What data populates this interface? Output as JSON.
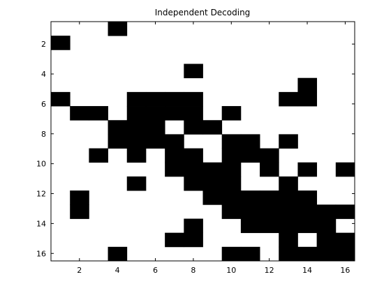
{
  "chart_data": {
    "type": "heatmap",
    "title": "Independent Decoding",
    "xlabel": "",
    "ylabel": "",
    "xlim": [
      0.5,
      16.5
    ],
    "ylim": [
      0.5,
      16.5
    ],
    "y_direction": "top-to-bottom",
    "colors": {
      "zero": "#ffffff",
      "one": "#000000"
    },
    "x_ticks": [
      2,
      4,
      6,
      8,
      10,
      12,
      14,
      16
    ],
    "y_ticks": [
      2,
      4,
      6,
      8,
      10,
      12,
      14,
      16
    ],
    "x_tick_labels": [
      "2",
      "4",
      "6",
      "8",
      "10",
      "12",
      "14",
      "16"
    ],
    "y_tick_labels": [
      "2",
      "4",
      "6",
      "8",
      "10",
      "12",
      "14",
      "16"
    ],
    "grid": false,
    "matrix": [
      [
        0,
        0,
        0,
        1,
        0,
        0,
        0,
        0,
        0,
        0,
        0,
        0,
        0,
        0,
        0,
        0
      ],
      [
        1,
        0,
        0,
        0,
        0,
        0,
        0,
        0,
        0,
        0,
        0,
        0,
        0,
        0,
        0,
        0
      ],
      [
        0,
        0,
        0,
        0,
        0,
        0,
        0,
        0,
        0,
        0,
        0,
        0,
        0,
        0,
        0,
        0
      ],
      [
        0,
        0,
        0,
        0,
        0,
        0,
        0,
        1,
        0,
        0,
        0,
        0,
        0,
        0,
        0,
        0
      ],
      [
        0,
        0,
        0,
        0,
        0,
        0,
        0,
        0,
        0,
        0,
        0,
        0,
        0,
        1,
        0,
        0
      ],
      [
        1,
        0,
        0,
        0,
        1,
        1,
        1,
        1,
        0,
        0,
        0,
        0,
        1,
        1,
        0,
        0
      ],
      [
        0,
        1,
        1,
        0,
        1,
        1,
        1,
        1,
        0,
        1,
        0,
        0,
        0,
        0,
        0,
        0
      ],
      [
        0,
        0,
        0,
        1,
        1,
        1,
        0,
        1,
        1,
        0,
        0,
        0,
        0,
        0,
        0,
        0
      ],
      [
        0,
        0,
        0,
        1,
        1,
        1,
        1,
        0,
        0,
        1,
        1,
        0,
        1,
        0,
        0,
        0
      ],
      [
        0,
        0,
        1,
        0,
        1,
        0,
        1,
        1,
        0,
        1,
        1,
        1,
        0,
        0,
        0,
        0
      ],
      [
        0,
        0,
        0,
        0,
        0,
        0,
        1,
        1,
        1,
        1,
        0,
        1,
        0,
        1,
        0,
        1
      ],
      [
        0,
        0,
        0,
        0,
        1,
        0,
        0,
        1,
        1,
        1,
        0,
        0,
        1,
        0,
        0,
        0
      ],
      [
        0,
        1,
        0,
        0,
        0,
        0,
        0,
        0,
        1,
        1,
        1,
        1,
        1,
        1,
        0,
        0
      ],
      [
        0,
        1,
        0,
        0,
        0,
        0,
        0,
        0,
        0,
        1,
        1,
        1,
        1,
        1,
        1,
        1
      ],
      [
        0,
        0,
        0,
        0,
        0,
        0,
        0,
        1,
        0,
        0,
        1,
        1,
        1,
        1,
        1,
        0
      ],
      [
        0,
        0,
        0,
        0,
        0,
        0,
        1,
        1,
        0,
        0,
        0,
        0,
        1,
        0,
        1,
        1
      ],
      [
        0,
        0,
        0,
        1,
        0,
        0,
        0,
        0,
        0,
        1,
        1,
        0,
        1,
        1,
        1,
        1
      ]
    ]
  }
}
